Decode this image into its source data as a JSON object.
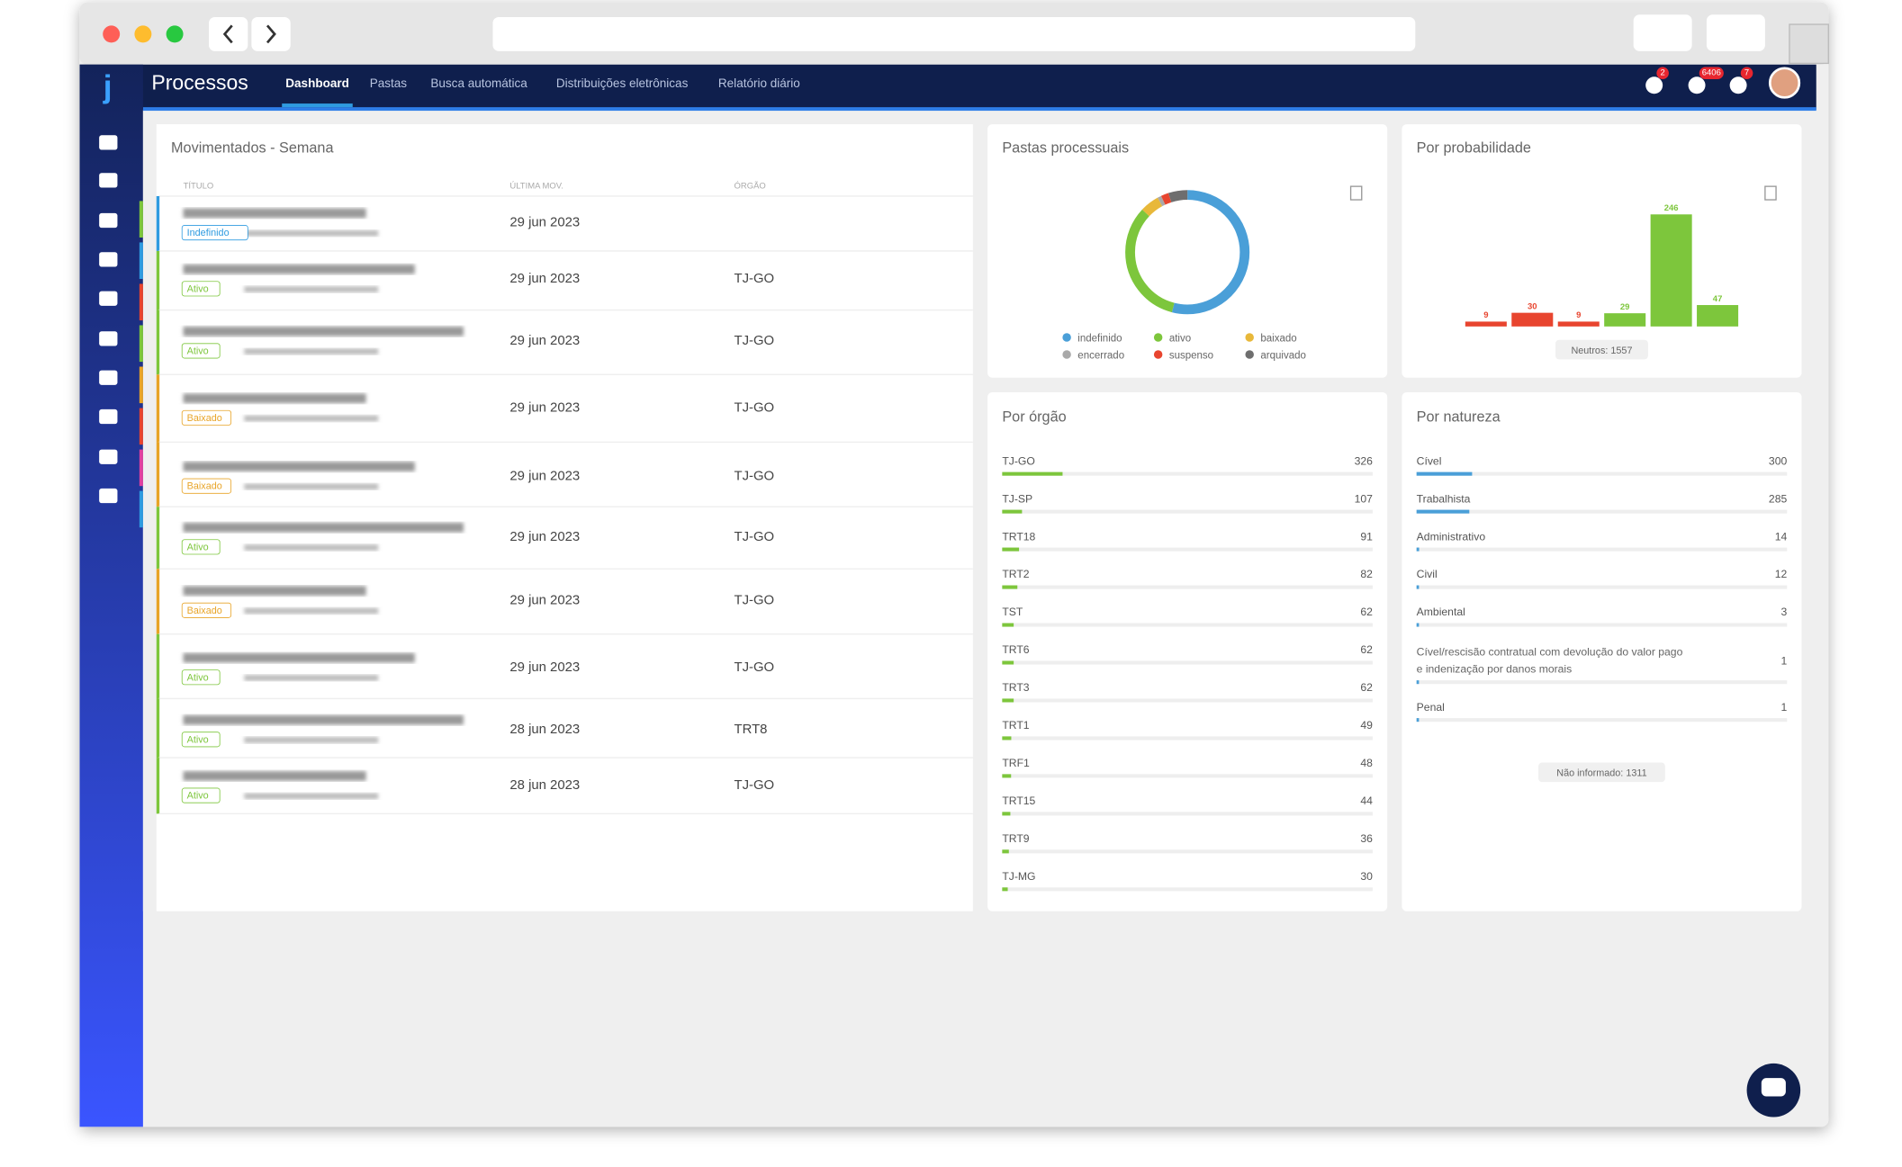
{
  "nav": {
    "app": "Processos",
    "tabs": [
      "Dashboard",
      "Pastas",
      "Busca automática",
      "Distribuições eletrônicas",
      "Relatório diário"
    ],
    "badges": [
      "2",
      "6406",
      "7"
    ]
  },
  "table": {
    "title": "Movimentados - Semana",
    "headers": [
      "TÍTULO",
      "ÚLTIMA MOV.",
      "ÓRGÃO"
    ],
    "rows": [
      {
        "status": "Indefinido",
        "date": "29 jun 2023",
        "color": "#2f9be0"
      },
      {
        "status": "Ativo",
        "date": "29 jun 2023",
        "org": "TJ-GO",
        "color": "#7dc63c"
      },
      {
        "status": "Ativo",
        "date": "29 jun 2023",
        "org": "TJ-GO",
        "color": "#7dc63c"
      },
      {
        "status": "Baixado",
        "date": "29 jun 2023",
        "org": "TJ-GO",
        "color": "#e8a427"
      },
      {
        "status": "Baixado",
        "date": "29 jun 2023",
        "org": "TJ-GO",
        "color": "#e8a427"
      },
      {
        "status": "Ativo",
        "date": "29 jun 2023",
        "org": "TJ-GO",
        "color": "#7dc63c"
      },
      {
        "status": "Baixado",
        "date": "29 jun 2023",
        "org": "TJ-GO",
        "color": "#e8a427"
      },
      {
        "status": "Ativo",
        "date": "29 jun 2023",
        "org": "TJ-GO",
        "color": "#7dc63c"
      },
      {
        "status": "Ativo",
        "date": "28 jun 2023",
        "org": "TRT8",
        "color": "#7dc63c"
      },
      {
        "status": "Ativo",
        "date": "28 jun 2023",
        "org": "TJ-GO",
        "color": "#7dc63c"
      }
    ]
  },
  "chart_data": [
    {
      "type": "donut",
      "title": "Pastas processuais",
      "categories": [
        "indefinido",
        "ativo",
        "baixado",
        "encerrado",
        "suspenso",
        "arquivado"
      ],
      "values": [
        54,
        33,
        5,
        1,
        2,
        5
      ],
      "colors": [
        "#4a9fd8",
        "#7dc63c",
        "#e8b83a",
        "#a9a9a9",
        "#e8452f",
        "#6e6e6e"
      ]
    },
    {
      "type": "bar",
      "title": "Por probabilidade",
      "values": [
        9,
        30,
        9,
        29,
        246,
        47
      ],
      "colors": [
        "#e8452f",
        "#e8452f",
        "#e8452f",
        "#7dc63c",
        "#7dc63c",
        "#7dc63c"
      ],
      "ylim": [
        0,
        246
      ],
      "note": "Neutros: 1557"
    },
    {
      "type": "hbar-list",
      "title": "Por órgão",
      "color": "#7dc63c",
      "xlim": [
        0,
        2000
      ],
      "categories": [
        "TJ-GO",
        "TJ-SP",
        "TRT18",
        "TRT2",
        "TST",
        "TRT6",
        "TRT3",
        "TRT1",
        "TRF1",
        "TRT15",
        "TRT9",
        "TJ-MG"
      ],
      "values": [
        326,
        107,
        91,
        82,
        62,
        62,
        62,
        49,
        48,
        44,
        36,
        30
      ]
    },
    {
      "type": "hbar-list",
      "title": "Por natureza",
      "color": "#4a9fd8",
      "xlim": [
        0,
        2000
      ],
      "categories": [
        "Cível",
        "Trabalhista",
        "Administrativo",
        "Civil",
        "Ambiental",
        "Cível/rescisão contratual com devolução do valor pago e indenização por danos morais",
        "Penal"
      ],
      "values": [
        300,
        285,
        14,
        12,
        3,
        1,
        1
      ],
      "note": "Não informado: 1311"
    }
  ]
}
